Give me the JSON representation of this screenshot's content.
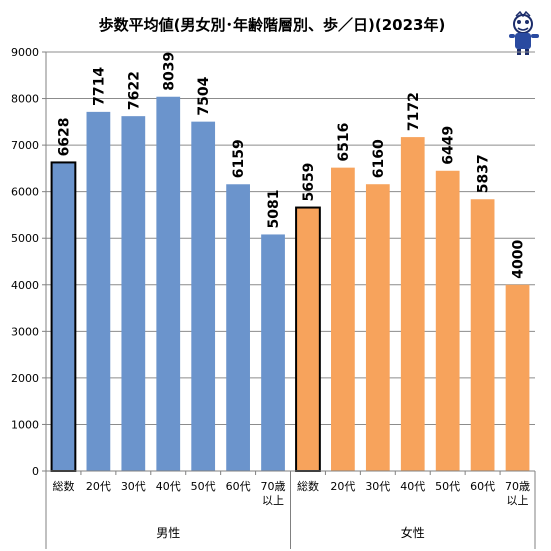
{
  "chart_data": {
    "type": "bar",
    "title": "歩数平均値(男女別･年齢階層別、歩／日)(2023年)",
    "ylim": [
      0,
      9000
    ],
    "yticks": [
      0,
      1000,
      2000,
      3000,
      4000,
      5000,
      6000,
      7000,
      8000,
      9000
    ],
    "grid": true,
    "groups": [
      {
        "name": "男性",
        "color": "#6b94cc",
        "categories": [
          [
            "総数"
          ],
          [
            "20代"
          ],
          [
            "30代"
          ],
          [
            "40代"
          ],
          [
            "50代"
          ],
          [
            "60代"
          ],
          [
            "70歳",
            "以上"
          ]
        ],
        "values": [
          6628,
          7714,
          7622,
          8039,
          7504,
          6159,
          5081
        ],
        "total_index": 0
      },
      {
        "name": "女性",
        "color": "#f7a35c",
        "categories": [
          [
            "総数"
          ],
          [
            "20代"
          ],
          [
            "30代"
          ],
          [
            "40代"
          ],
          [
            "50代"
          ],
          [
            "60代"
          ],
          [
            "70歳",
            "以上"
          ]
        ],
        "values": [
          5659,
          6516,
          6160,
          7172,
          6449,
          5837,
          4000
        ],
        "total_index": 0
      }
    ]
  },
  "mascot_icon": "mascot-icon"
}
